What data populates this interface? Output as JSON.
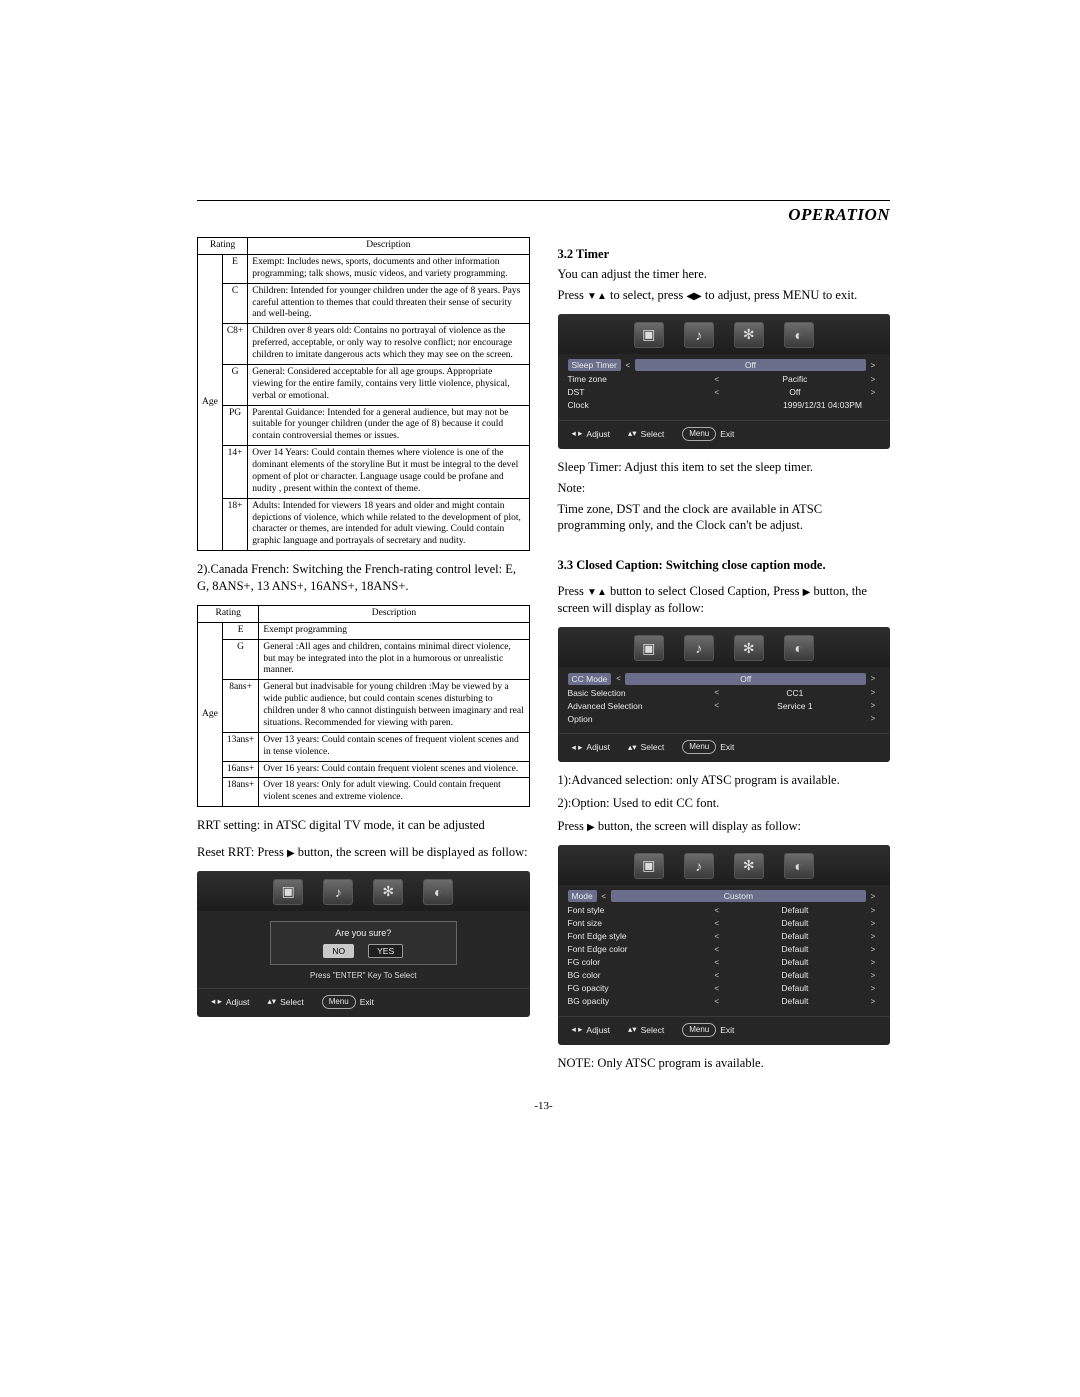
{
  "header": {
    "title": "OPERATION"
  },
  "left": {
    "table1": {
      "group": "Age",
      "headers": [
        "Rating",
        "Description"
      ],
      "rows": [
        {
          "code": "E",
          "desc": "Exempt: Includes news, sports, documents and other information programming; talk shows, music videos, and variety programming."
        },
        {
          "code": "C",
          "desc": "Children: Intended for younger children under the age of 8 years. Pays careful attention to themes that could threaten their sense of security and well-being."
        },
        {
          "code": "C8+",
          "desc": "Children over 8 years old: Contains no portrayal of violence as the preferred, acceptable, or only way to resolve conflict; nor encourage children to imitate dangerous acts which they may see on the screen."
        },
        {
          "code": "G",
          "desc": "General: Considered acceptable for all age groups. Appropriate viewing for the entire family, contains very little violence, physical, verbal or emotional."
        },
        {
          "code": "PG",
          "desc": "Parental Guidance: Intended for a general audience, but may not be suitable for younger children (under the age of 8) because it could contain controversial themes or issues."
        },
        {
          "code": "14+",
          "desc": "Over 14 Years: Could contain themes where violence is one of the dominant elements of the storyline But it must be integral to the devel opment of plot or character. Language usage could be profane and nudity , present within the context of theme."
        },
        {
          "code": "18+",
          "desc": "Adults: Intended for viewers 18 years and older and might contain depictions of  violence, which while related to the development of plot,  character or themes, are intended for adult  viewing. Could contain graphic language and portrayals of secretary and nudity."
        }
      ]
    },
    "para1": "2).Canada French: Switching the French-rating control level: E, G, 8ANS+, 13 ANS+, 16ANS+, 18ANS+.",
    "table2": {
      "group": "Age",
      "headers": [
        "Rating",
        "Description"
      ],
      "rows": [
        {
          "code": "E",
          "desc": "Exempt programming"
        },
        {
          "code": "G",
          "desc": "General :All ages and children, contains minimal direct violence, but may be integrated into the plot in a humorous or unrealistic manner."
        },
        {
          "code": "8ans+",
          "desc": "General but inadvisable for young children :May be viewed by a wide public audience, but could contain scenes disturbing to children under 8 who cannot distinguish between imaginary and real situations. Recommended for viewing with paren."
        },
        {
          "code": "13ans+",
          "desc": "Over 13 years: Could contain scenes of frequent violent scenes and in tense violence."
        },
        {
          "code": "16ans+",
          "desc": "Over 16 years: Could contain frequent violent scenes and violence."
        },
        {
          "code": "18ans+",
          "desc": "Over 18 years: Only for adult viewing. Could contain frequent violent  scenes and extreme violence."
        }
      ]
    },
    "para2": "RRT setting: in ATSC digital TV mode, it can be adjusted",
    "para3_a": "Reset RRT: Press  ",
    "para3_b": "  button, the screen will be displayed as follow:",
    "osd_confirm": {
      "question": "Are you sure?",
      "no": "NO",
      "yes": "YES",
      "hint": "Press \"ENTER\" Key To Select"
    }
  },
  "right": {
    "h_timer": "3.2  Timer",
    "timer_p1": "You can adjust the timer here.",
    "timer_p2_a": "Press ",
    "timer_p2_b": " to select, press ",
    "timer_p2_c": " to adjust, press MENU to exit.",
    "osd_timer": {
      "rows": [
        {
          "label": "Sleep Timer",
          "val": "Off",
          "hl": true
        },
        {
          "label": "Time zone",
          "val": "Pacific"
        },
        {
          "label": "DST",
          "val": "Off"
        },
        {
          "label": "Clock",
          "val": "1999/12/31 04:03PM",
          "plain": true
        }
      ]
    },
    "timer_note1": "Sleep Timer: Adjust this item to set the sleep timer.",
    "timer_note2": "Note:",
    "timer_note3": "Time zone, DST and the clock are available in ATSC programming only, and the Clock can't be adjust.",
    "h_cc": "3.3  Closed Caption: Switching close caption mode.",
    "cc_p1_a": "Press ",
    "cc_p1_b": " button to select Closed Caption, Press  ",
    "cc_p1_c": " button, the screen will display as follow:",
    "osd_cc": {
      "rows": [
        {
          "label": "CC  Mode",
          "val": "Off",
          "hl": true
        },
        {
          "label": "Basic Selection",
          "val": "CC1"
        },
        {
          "label": "Advanced Selection",
          "val": "Service 1"
        },
        {
          "label": "Option",
          "val": "",
          "rightonly": true
        }
      ]
    },
    "cc_p2": "1):Advanced selection: only ATSC program is available.",
    "cc_p3": "2):Option: Used to edit CC font.",
    "cc_p4_a": "     Press  ",
    "cc_p4_b": "  button, the screen will display as follow:",
    "osd_opt": {
      "rows": [
        {
          "label": "Mode",
          "val": "Custom",
          "hl": true
        },
        {
          "label": "Font style",
          "val": "Default"
        },
        {
          "label": "Font size",
          "val": "Default"
        },
        {
          "label": "Font Edge style",
          "val": "Default"
        },
        {
          "label": "Font Edge color",
          "val": "Default"
        },
        {
          "label": "FG color",
          "val": "Default"
        },
        {
          "label": "BG color",
          "val": "Default"
        },
        {
          "label": "FG opacity",
          "val": "Default"
        },
        {
          "label": "BG opacity",
          "val": "Default"
        }
      ]
    },
    "cc_note": "NOTE: Only ATSC program is available."
  },
  "osd_foot": {
    "adjust": "Adjust",
    "select": "Select",
    "menu": "Menu",
    "exit": "Exit"
  },
  "page_num": "-13-"
}
